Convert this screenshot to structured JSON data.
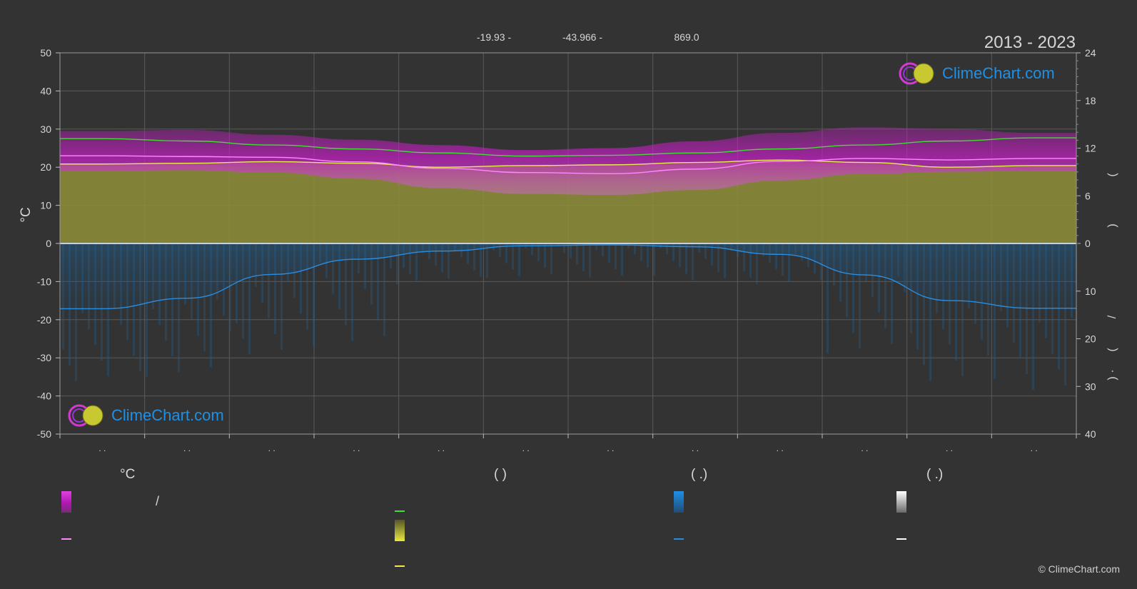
{
  "header": {
    "coords": [
      "-19.93 -",
      "-43.966 -",
      "869.0"
    ],
    "period": "2013 - 2023"
  },
  "brand": {
    "name": "ClimeChart.com",
    "copyright": "© ClimeChart.com"
  },
  "chart_data": {
    "type": "area",
    "left_axis": {
      "label": "°C",
      "range": [
        -50,
        50
      ],
      "ticks": [
        50,
        40,
        30,
        20,
        10,
        0,
        -10,
        -20,
        -30,
        -40,
        -50
      ]
    },
    "right_axis_top": {
      "range": [
        0,
        24
      ],
      "ticks": [
        24,
        18,
        12,
        6,
        0
      ],
      "label_glyphs": [
        "(",
        ")"
      ]
    },
    "right_axis_bottom": {
      "range": [
        0,
        40
      ],
      "ticks": [
        10,
        20,
        30,
        40
      ],
      "label_glyphs": [
        "/",
        "(",
        "·",
        ")"
      ]
    },
    "x": [
      "1",
      "2",
      "3",
      "4",
      "5",
      "6",
      "7",
      "8",
      "9",
      "10",
      "11",
      "12"
    ],
    "month_tick_labels": [
      ". .",
      ". .",
      ". .",
      ". .",
      ". .",
      ". .",
      ". .",
      ". .",
      ". .",
      ". .",
      ". .",
      ". ."
    ],
    "series": [
      {
        "key": "daylight",
        "values": [
          13.2,
          12.9,
          12.4,
          11.9,
          11.4,
          11.0,
          11.1,
          11.4,
          11.9,
          12.4,
          12.9,
          13.3
        ]
      },
      {
        "key": "sunshine",
        "values": [
          10.0,
          10.1,
          10.3,
          10.1,
          9.6,
          9.8,
          9.9,
          10.2,
          10.5,
          10.2,
          9.6,
          9.8
        ]
      },
      {
        "key": "mean_temp",
        "values": [
          23.0,
          22.8,
          22.6,
          21.4,
          19.7,
          18.6,
          18.3,
          19.5,
          21.5,
          22.3,
          21.9,
          22.3
        ]
      },
      {
        "key": "max_temp_band",
        "values": [
          29.5,
          29.8,
          28.5,
          27.2,
          25.8,
          24.5,
          25.0,
          26.8,
          29.0,
          30.5,
          30.0,
          29.0
        ]
      },
      {
        "key": "min_temp_band",
        "values": [
          19.0,
          19.2,
          18.6,
          17.0,
          14.5,
          13.0,
          12.7,
          14.0,
          16.5,
          18.2,
          18.8,
          19.0
        ]
      },
      {
        "key": "precipitation_mm_day",
        "values": [
          13.7,
          11.5,
          6.5,
          3.3,
          1.6,
          0.5,
          0.3,
          0.7,
          2.3,
          6.6,
          12.0,
          13.6
        ]
      }
    ],
    "grid": true,
    "colors": {
      "background": "#333333",
      "grid": "#5a5a5a",
      "daylight": "#44dd33",
      "sunshine": "#ecec50",
      "sunshine_fill": "#8f8f3a",
      "mean_temp": "#ff88ff",
      "temp_band": "#cc22cc",
      "precip_line": "#2a8ee0",
      "precip_fill": "#1f4f78",
      "zero_line": "#cfcfcf"
    }
  },
  "legend": {
    "col1_header": "°C",
    "col1_row1": "/",
    "col2_header": "(        )",
    "col3_header": "(   .)",
    "col4_header": "(   .)"
  }
}
